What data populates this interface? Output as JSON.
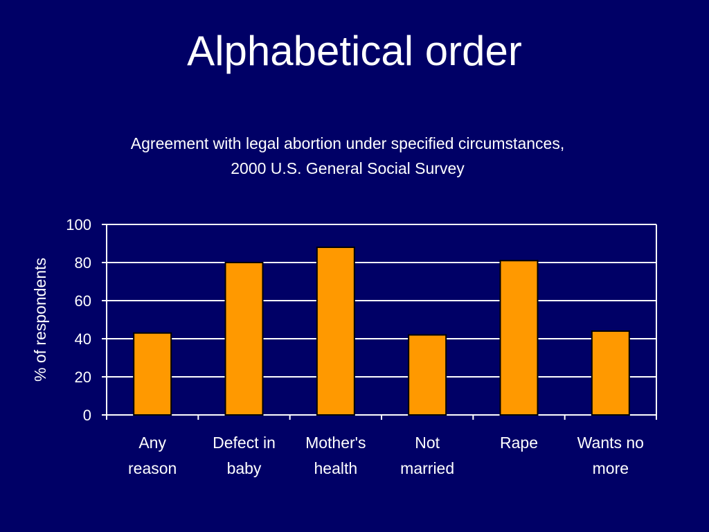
{
  "slide": {
    "title": "Alphabetical order"
  },
  "colors": {
    "background": "#000066",
    "bar_fill": "#FF9900",
    "bar_stroke": "#000000",
    "text": "#FFFFFF",
    "grid": "#FFFFFF"
  },
  "chart_data": {
    "type": "bar",
    "title_lines": [
      "Agreement with legal abortion under specified circumstances,",
      "2000 U.S. General Social Survey"
    ],
    "ylabel": "% of respondents",
    "xlabel": "",
    "ylim": [
      0,
      100
    ],
    "yticks": [
      0,
      20,
      40,
      60,
      80,
      100
    ],
    "grid": true,
    "categories": [
      [
        "Any",
        "reason"
      ],
      [
        "Defect in",
        "baby"
      ],
      [
        "Mother's",
        "health"
      ],
      [
        "Not",
        "married"
      ],
      [
        "Rape"
      ],
      [
        "Wants no",
        "more"
      ]
    ],
    "values": [
      43,
      80,
      88,
      42,
      81,
      44
    ]
  }
}
